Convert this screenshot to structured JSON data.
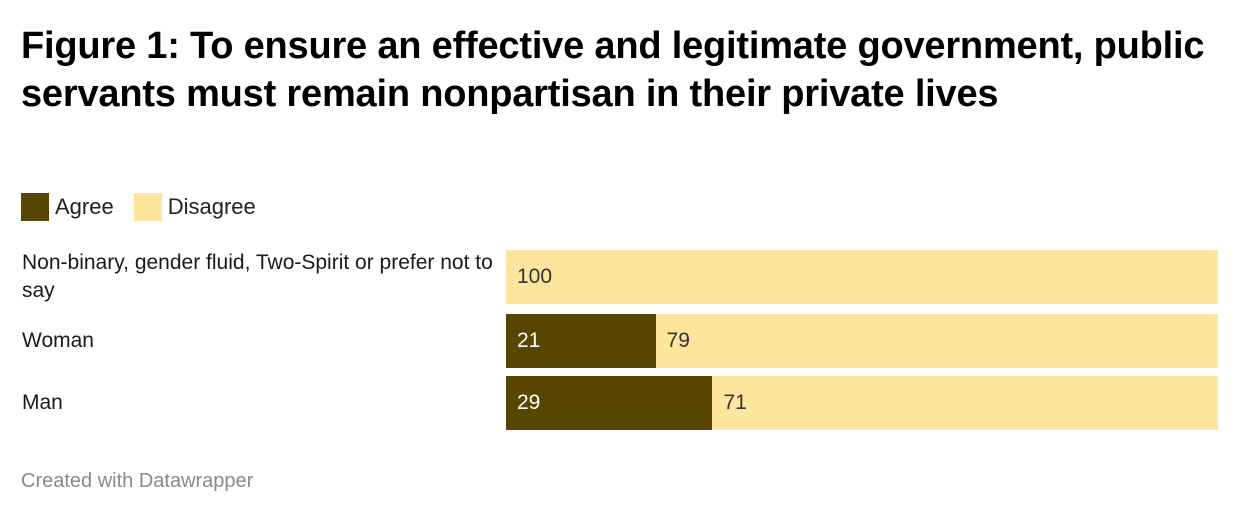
{
  "title": "Figure 1: To ensure an effective and legitimate government, public servants must remain nonpartisan in their private lives",
  "legend": [
    {
      "label": "Agree",
      "color": "#574500"
    },
    {
      "label": "Disagree",
      "color": "#fee59e"
    }
  ],
  "footer": "Created with Datawrapper",
  "chart_data": {
    "type": "bar",
    "orientation": "horizontal",
    "stacked": true,
    "title": "Figure 1: To ensure an effective and legitimate government, public servants must remain nonpartisan in their private lives",
    "categories": [
      "Non-binary, gender fluid, Two-Spirit or prefer not to say",
      "Woman",
      "Man"
    ],
    "series": [
      {
        "name": "Agree",
        "color": "#574500",
        "label_color": "#ffffff",
        "values": [
          0,
          21,
          29
        ]
      },
      {
        "name": "Disagree",
        "color": "#fee59e",
        "label_color": "#333333",
        "values": [
          100,
          79,
          71
        ]
      }
    ],
    "xlim": [
      0,
      100
    ],
    "legend_position": "top-left",
    "grid": false
  }
}
